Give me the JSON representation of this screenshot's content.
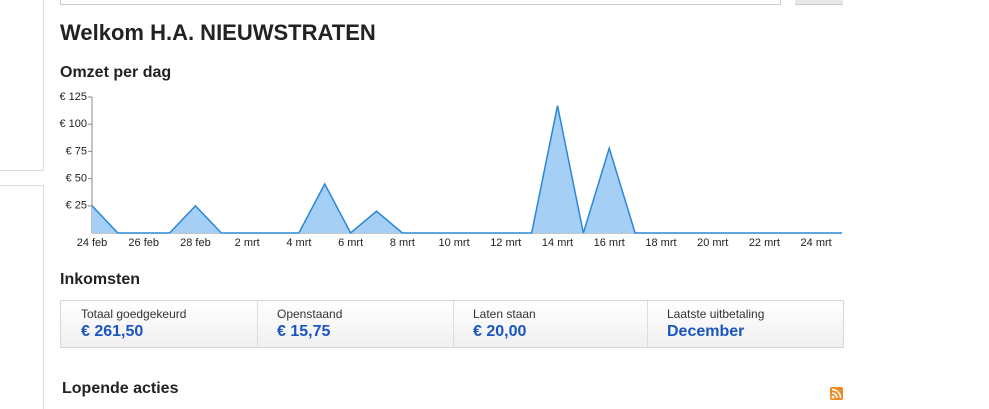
{
  "header": {
    "title": "Welkom H.A. NIEUWSTRATEN"
  },
  "chart_data": {
    "type": "area",
    "title": "Omzet per dag",
    "categories": [
      "24 feb",
      null,
      "26 feb",
      null,
      "28 feb",
      null,
      "2 mrt",
      null,
      "4 mrt",
      null,
      "6 mrt",
      null,
      "8 mrt",
      null,
      "10 mrt",
      null,
      "12 mrt",
      null,
      "14 mrt",
      null,
      "16 mrt",
      null,
      "18 mrt",
      null,
      "20 mrt",
      null,
      "22 mrt",
      null,
      "24 mrt",
      null
    ],
    "values": [
      25,
      0,
      0,
      0,
      25,
      0,
      0,
      0,
      0,
      45,
      0,
      20,
      0,
      0,
      0,
      0,
      0,
      0,
      117,
      0,
      78,
      0,
      0,
      0,
      0,
      0,
      0,
      0,
      0,
      0
    ],
    "color": "#2a87d8",
    "fill": "#a6cff5",
    "ylim": [
      0,
      125
    ],
    "yticks": [
      {
        "value": 25,
        "label": "€ 25"
      },
      {
        "value": 50,
        "label": "€ 50"
      },
      {
        "value": 75,
        "label": "€ 75"
      },
      {
        "value": 100,
        "label": "€ 100"
      },
      {
        "value": 125,
        "label": "€ 125"
      }
    ]
  },
  "income": {
    "title": "Inkomsten",
    "items": [
      {
        "label": "Totaal goedgekeurd",
        "value": "€ 261,50"
      },
      {
        "label": "Openstaand",
        "value": "€ 15,75"
      },
      {
        "label": "Laten staan",
        "value": "€ 20,00"
      },
      {
        "label": "Laatste uitbetaling",
        "value": "December"
      }
    ]
  },
  "actions": {
    "title": "Lopende acties"
  }
}
